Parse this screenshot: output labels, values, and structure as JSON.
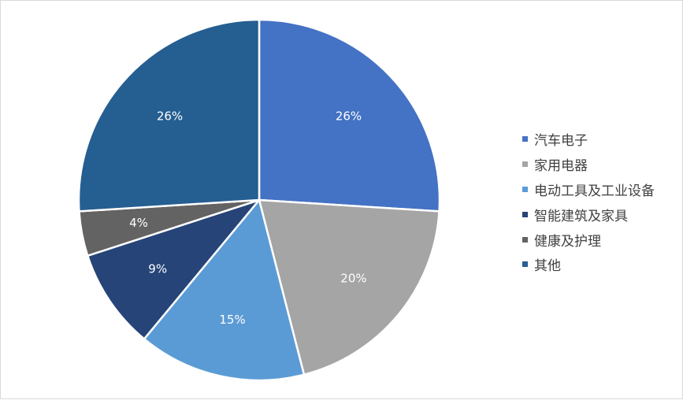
{
  "chart_data": {
    "type": "pie",
    "title": "",
    "categories": [
      "汽车电子",
      "家用电器",
      "电动工具及工业设备",
      "智能建筑及家具",
      "健康及护理",
      "其他"
    ],
    "values": [
      26,
      20,
      15,
      9,
      4,
      26
    ],
    "labels": [
      "26%",
      "20%",
      "15%",
      "9%",
      "4%",
      "26%"
    ],
    "colors": [
      "#4472C4",
      "#A5A5A5",
      "#5B9BD5",
      "#264478",
      "#636363",
      "#255E91"
    ],
    "legend_position": "right",
    "start_angle": "12 o'clock",
    "direction": "clockwise"
  }
}
